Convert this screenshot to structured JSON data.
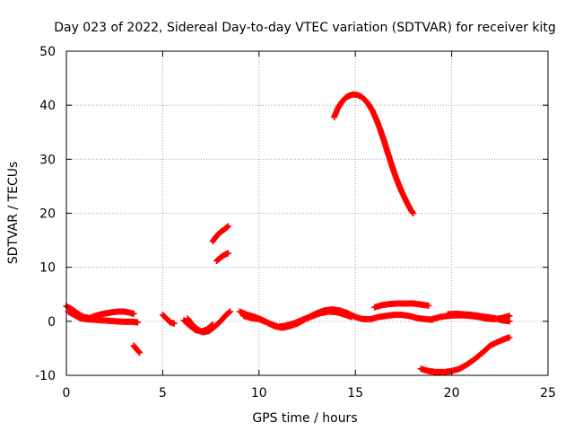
{
  "chart_data": {
    "type": "scatter",
    "title": "Day 023 of 2022, Sidereal Day-to-day VTEC variation (SDTVAR) for receiver kitg",
    "xlabel": "GPS time / hours",
    "ylabel": "SDTVAR / TECUs",
    "xlim": [
      0,
      25
    ],
    "ylim": [
      -10,
      50
    ],
    "xticks": [
      0,
      5,
      10,
      15,
      20,
      25
    ],
    "yticks": [
      -10,
      0,
      10,
      20,
      30,
      40,
      50
    ],
    "xtick_labels": [
      "0",
      "5",
      "10",
      "15",
      "20",
      "25"
    ],
    "ytick_labels": [
      "-10",
      "0",
      "10",
      "20",
      "30",
      "40",
      "50"
    ],
    "grid": true,
    "marker": "+",
    "color": "#ff0000",
    "series": [
      {
        "name": "arc-low-band",
        "points": [
          [
            0,
            2.8
          ],
          [
            0.3,
            2.2
          ],
          [
            0.6,
            1.4
          ],
          [
            0.9,
            0.8
          ],
          [
            1.2,
            0.6
          ],
          [
            1.5,
            1.0
          ],
          [
            1.8,
            1.3
          ],
          [
            2.1,
            1.5
          ],
          [
            2.4,
            1.7
          ],
          [
            2.7,
            1.8
          ],
          [
            3.0,
            1.8
          ],
          [
            3.3,
            1.6
          ],
          [
            3.5,
            1.4
          ]
        ]
      },
      {
        "name": "arc-low-band-2",
        "points": [
          [
            0.1,
            1.8
          ],
          [
            0.4,
            1.2
          ],
          [
            0.7,
            0.6
          ],
          [
            1.0,
            0.4
          ],
          [
            1.4,
            0.3
          ],
          [
            1.8,
            0.2
          ],
          [
            2.2,
            0.1
          ],
          [
            2.6,
            0.0
          ],
          [
            3.0,
            -0.1
          ],
          [
            3.4,
            -0.1
          ],
          [
            3.7,
            -0.2
          ]
        ]
      },
      {
        "name": "arc-dip-4h",
        "points": [
          [
            3.5,
            -4.5
          ],
          [
            3.65,
            -5.2
          ],
          [
            3.8,
            -5.8
          ]
        ]
      },
      {
        "name": "arc-5-6h",
        "points": [
          [
            5.0,
            1.2
          ],
          [
            5.2,
            0.5
          ],
          [
            5.4,
            -0.2
          ],
          [
            5.6,
            -0.4
          ]
        ]
      },
      {
        "name": "arc-6-8h",
        "points": [
          [
            6.3,
            0.5
          ],
          [
            6.5,
            -0.5
          ],
          [
            6.8,
            -1.5
          ],
          [
            7.1,
            -2.0
          ],
          [
            7.4,
            -1.8
          ],
          [
            7.7,
            -1.0
          ],
          [
            8.0,
            0.0
          ],
          [
            8.3,
            1.2
          ],
          [
            8.5,
            1.8
          ]
        ]
      },
      {
        "name": "arc-6-8h-b",
        "points": [
          [
            6.1,
            0.2
          ],
          [
            6.4,
            -0.8
          ],
          [
            6.7,
            -1.6
          ],
          [
            7.0,
            -1.9
          ],
          [
            7.3,
            -1.5
          ],
          [
            7.6,
            -0.6
          ]
        ]
      },
      {
        "name": "arc-8h-high",
        "points": [
          [
            7.6,
            14.8
          ],
          [
            7.8,
            15.8
          ],
          [
            8.0,
            16.5
          ],
          [
            8.2,
            17.0
          ],
          [
            8.4,
            17.6
          ]
        ]
      },
      {
        "name": "arc-8h-mid",
        "points": [
          [
            7.8,
            11.2
          ],
          [
            8.0,
            11.8
          ],
          [
            8.2,
            12.3
          ],
          [
            8.4,
            12.6
          ]
        ]
      },
      {
        "name": "arc-9-14h",
        "points": [
          [
            9.0,
            1.8
          ],
          [
            9.4,
            1.2
          ],
          [
            9.8,
            0.8
          ],
          [
            10.2,
            0.2
          ],
          [
            10.6,
            -0.5
          ],
          [
            11.0,
            -1.0
          ],
          [
            11.4,
            -0.8
          ],
          [
            11.8,
            -0.4
          ],
          [
            12.2,
            0.2
          ],
          [
            12.6,
            0.8
          ],
          [
            13.0,
            1.5
          ],
          [
            13.4,
            2.0
          ],
          [
            13.8,
            2.2
          ],
          [
            14.2,
            2.0
          ],
          [
            14.6,
            1.5
          ],
          [
            15.0,
            0.8
          ],
          [
            15.4,
            0.4
          ],
          [
            15.8,
            0.4
          ],
          [
            16.2,
            0.8
          ],
          [
            16.6,
            1.0
          ],
          [
            17.0,
            1.2
          ],
          [
            17.4,
            1.2
          ],
          [
            17.8,
            1.0
          ],
          [
            18.2,
            0.6
          ],
          [
            18.6,
            0.4
          ],
          [
            19.0,
            0.3
          ]
        ]
      },
      {
        "name": "arc-9-14h-b",
        "points": [
          [
            9.2,
            1.0
          ],
          [
            9.6,
            0.6
          ],
          [
            10.0,
            0.4
          ],
          [
            10.4,
            -0.2
          ],
          [
            10.8,
            -0.9
          ],
          [
            11.2,
            -1.2
          ],
          [
            11.6,
            -0.9
          ],
          [
            12.0,
            -0.4
          ],
          [
            12.4,
            0.4
          ],
          [
            12.8,
            1.0
          ],
          [
            13.2,
            1.5
          ],
          [
            13.6,
            1.8
          ],
          [
            14.0,
            1.7
          ],
          [
            14.4,
            1.3
          ],
          [
            14.8,
            0.8
          ]
        ]
      },
      {
        "name": "arc-14-18h-big",
        "points": [
          [
            13.9,
            37.8
          ],
          [
            14.1,
            39.5
          ],
          [
            14.3,
            40.6
          ],
          [
            14.5,
            41.4
          ],
          [
            14.7,
            41.8
          ],
          [
            14.9,
            42.0
          ],
          [
            15.1,
            41.9
          ],
          [
            15.3,
            41.6
          ],
          [
            15.5,
            41.0
          ],
          [
            15.7,
            40.1
          ],
          [
            15.9,
            38.9
          ],
          [
            16.1,
            37.3
          ],
          [
            16.3,
            35.4
          ],
          [
            16.5,
            33.3
          ],
          [
            16.7,
            31.0
          ],
          [
            16.9,
            28.8
          ],
          [
            17.1,
            26.7
          ],
          [
            17.3,
            24.9
          ],
          [
            17.5,
            23.3
          ],
          [
            17.7,
            21.8
          ],
          [
            17.9,
            20.5
          ],
          [
            18.0,
            20.0
          ]
        ]
      },
      {
        "name": "arc-16-18h",
        "points": [
          [
            16.0,
            2.6
          ],
          [
            16.4,
            3.0
          ],
          [
            16.8,
            3.2
          ],
          [
            17.2,
            3.3
          ],
          [
            17.6,
            3.3
          ],
          [
            18.0,
            3.3
          ],
          [
            18.4,
            3.1
          ],
          [
            18.8,
            2.9
          ]
        ]
      },
      {
        "name": "arc-18-22h-neg",
        "points": [
          [
            18.4,
            -8.8
          ],
          [
            18.8,
            -9.2
          ],
          [
            19.2,
            -9.4
          ],
          [
            19.6,
            -9.4
          ],
          [
            20.0,
            -9.2
          ],
          [
            20.4,
            -8.8
          ],
          [
            20.8,
            -8.0
          ],
          [
            21.2,
            -7.0
          ],
          [
            21.6,
            -5.8
          ],
          [
            22.0,
            -4.5
          ],
          [
            22.4,
            -3.8
          ],
          [
            22.8,
            -3.2
          ],
          [
            23.0,
            -3.0
          ]
        ]
      },
      {
        "name": "arc-19-23h",
        "points": [
          [
            19.0,
            0.4
          ],
          [
            19.4,
            0.8
          ],
          [
            19.8,
            1.0
          ],
          [
            20.2,
            1.1
          ],
          [
            20.6,
            1.1
          ],
          [
            21.0,
            1.0
          ],
          [
            21.4,
            0.8
          ],
          [
            21.8,
            0.5
          ],
          [
            22.2,
            0.4
          ],
          [
            22.6,
            0.6
          ],
          [
            23.0,
            1.0
          ]
        ]
      },
      {
        "name": "arc-19-23h-b",
        "points": [
          [
            19.8,
            1.3
          ],
          [
            20.2,
            1.4
          ],
          [
            20.6,
            1.3
          ],
          [
            21.0,
            1.2
          ],
          [
            21.4,
            1.0
          ],
          [
            21.8,
            0.8
          ],
          [
            22.2,
            0.6
          ],
          [
            22.6,
            0.2
          ],
          [
            23.0,
            0.0
          ]
        ]
      }
    ]
  }
}
